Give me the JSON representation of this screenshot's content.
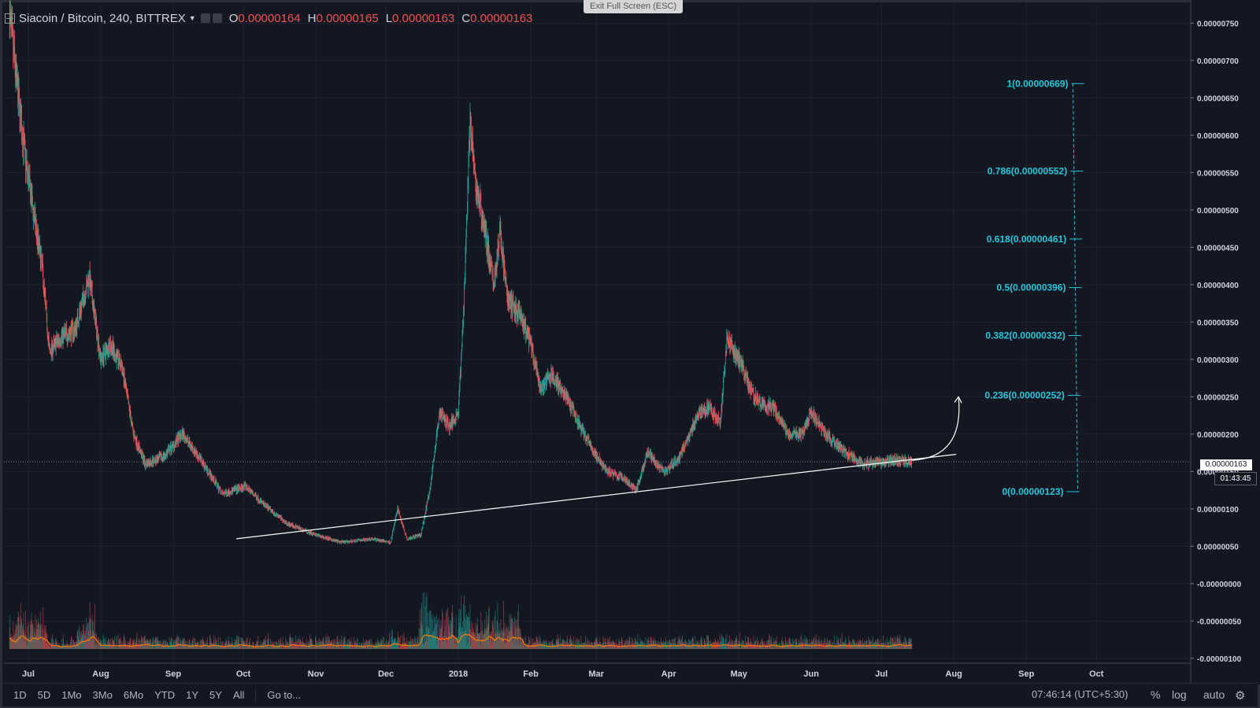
{
  "header": {
    "symbol": "Siacoin / Bitcoin, 240, BITTREX",
    "open_label": "O",
    "open_value": "0.00000164",
    "high_label": "H",
    "high_value": "0.00000165",
    "low_label": "L",
    "low_value": "0.00000163",
    "close_label": "C",
    "close_value": "0.00000163"
  },
  "exit_fullscreen_label": "Exit Full Screen (ESC)",
  "price_axis_labels": [
    "0.00000750",
    "0.00000700",
    "0.00000650",
    "0.00000600",
    "0.00000550",
    "0.00000500",
    "0.00000450",
    "0.00000400",
    "0.00000350",
    "0.00000300",
    "0.00000250",
    "0.00000200",
    "0.00000150",
    "0.00000100",
    "0.00000050",
    "-0.00000000",
    "-0.00000050",
    "-0.00000100"
  ],
  "last_price_tag": "0.00000163",
  "countdown_tag": "01:43:45",
  "time_axis_labels": [
    "Jul",
    "Aug",
    "Sep",
    "Oct",
    "Nov",
    "Dec",
    "2018",
    "Feb",
    "Mar",
    "Apr",
    "May",
    "Jun",
    "Jul",
    "Aug",
    "Sep",
    "Oct"
  ],
  "fib_levels": [
    {
      "label": "1(0.00000669)",
      "ratio": 1,
      "price": 6.69e-06
    },
    {
      "label": "0.786(0.00000552)",
      "ratio": 0.786,
      "price": 5.52e-06
    },
    {
      "label": "0.618(0.00000461)",
      "ratio": 0.618,
      "price": 4.61e-06
    },
    {
      "label": "0.5(0.00000396)",
      "ratio": 0.5,
      "price": 3.96e-06
    },
    {
      "label": "0.382(0.00000332)",
      "ratio": 0.382,
      "price": 3.32e-06
    },
    {
      "label": "0.236(0.00000252)",
      "ratio": 0.236,
      "price": 2.52e-06
    },
    {
      "label": "0(0.00000123)",
      "ratio": 0,
      "price": 1.23e-06
    }
  ],
  "bottom_bar": {
    "ranges": [
      "1D",
      "5D",
      "1Mo",
      "3Mo",
      "6Mo",
      "YTD",
      "1Y",
      "5Y",
      "All"
    ],
    "goto_label": "Go to...",
    "clock": "07:46:14 (UTC+5:30)",
    "percent_label": "%",
    "log_label": "log",
    "auto_label": "auto",
    "settings_icon": "gear-icon"
  },
  "colors": {
    "background": "#131722",
    "up": "#26a69a",
    "down": "#ef5350",
    "fib": "#26c6da",
    "volume_ma": "#f57c00",
    "trendline": "#ffffff"
  },
  "chart_data": {
    "type": "candlestick",
    "title": "Siacoin / Bitcoin, 240, BITTREX",
    "xlabel": "",
    "ylabel": "",
    "x_start": "2017-06-23",
    "x_end": "2018-07-14",
    "ylim": [
      -1e-06,
      7.6e-06
    ],
    "grid": true,
    "price_path": [
      [
        "2017-06-23",
        7.6e-06
      ],
      [
        "2017-06-26",
        6.7e-06
      ],
      [
        "2017-06-30",
        5.6e-06
      ],
      [
        "2017-07-03",
        5e-06
      ],
      [
        "2017-07-07",
        4.2e-06
      ],
      [
        "2017-07-10",
        3.1e-06
      ],
      [
        "2017-07-15",
        3.3e-06
      ],
      [
        "2017-07-21",
        3.4e-06
      ],
      [
        "2017-07-27",
        4.1e-06
      ],
      [
        "2017-08-01",
        3e-06
      ],
      [
        "2017-08-05",
        3.2e-06
      ],
      [
        "2017-08-10",
        2.9e-06
      ],
      [
        "2017-08-15",
        2e-06
      ],
      [
        "2017-08-20",
        1.6e-06
      ],
      [
        "2017-08-28",
        1.7e-06
      ],
      [
        "2017-09-05",
        2e-06
      ],
      [
        "2017-09-13",
        1.65e-06
      ],
      [
        "2017-09-22",
        1.2e-06
      ],
      [
        "2017-09-27",
        1.25e-06
      ],
      [
        "2017-10-02",
        1.3e-06
      ],
      [
        "2017-10-10",
        1.05e-06
      ],
      [
        "2017-10-20",
        8e-07
      ],
      [
        "2017-11-01",
        6.5e-07
      ],
      [
        "2017-11-12",
        5.5e-07
      ],
      [
        "2017-11-25",
        6e-07
      ],
      [
        "2017-12-03",
        5.5e-07
      ],
      [
        "2017-12-06",
        1e-06
      ],
      [
        "2017-12-10",
        6e-07
      ],
      [
        "2017-12-16",
        6.5e-07
      ],
      [
        "2017-12-20",
        1.3e-06
      ],
      [
        "2017-12-24",
        2.3e-06
      ],
      [
        "2017-12-28",
        2.1e-06
      ],
      [
        "2018-01-01",
        2.3e-06
      ],
      [
        "2018-01-03",
        3.5e-06
      ],
      [
        "2018-01-06",
        6.2e-06
      ],
      [
        "2018-01-08",
        5.4e-06
      ],
      [
        "2018-01-12",
        4.8e-06
      ],
      [
        "2018-01-16",
        4e-06
      ],
      [
        "2018-01-19",
        4.7e-06
      ],
      [
        "2018-01-22",
        3.8e-06
      ],
      [
        "2018-01-27",
        3.6e-06
      ],
      [
        "2018-02-01",
        3.2e-06
      ],
      [
        "2018-02-05",
        2.6e-06
      ],
      [
        "2018-02-10",
        2.8e-06
      ],
      [
        "2018-02-16",
        2.5e-06
      ],
      [
        "2018-02-22",
        2.1e-06
      ],
      [
        "2018-03-01",
        1.7e-06
      ],
      [
        "2018-03-06",
        1.5e-06
      ],
      [
        "2018-03-13",
        1.4e-06
      ],
      [
        "2018-03-18",
        1.25e-06
      ],
      [
        "2018-03-23",
        1.75e-06
      ],
      [
        "2018-03-30",
        1.5e-06
      ],
      [
        "2018-04-05",
        1.65e-06
      ],
      [
        "2018-04-10",
        2e-06
      ],
      [
        "2018-04-14",
        2.3e-06
      ],
      [
        "2018-04-18",
        2.35e-06
      ],
      [
        "2018-04-23",
        2.15e-06
      ],
      [
        "2018-04-26",
        3.3e-06
      ],
      [
        "2018-05-01",
        3e-06
      ],
      [
        "2018-05-06",
        2.6e-06
      ],
      [
        "2018-05-10",
        2.4e-06
      ],
      [
        "2018-05-16",
        2.35e-06
      ],
      [
        "2018-05-22",
        2e-06
      ],
      [
        "2018-05-28",
        2e-06
      ],
      [
        "2018-06-01",
        2.3e-06
      ],
      [
        "2018-06-06",
        2.05e-06
      ],
      [
        "2018-06-12",
        1.85e-06
      ],
      [
        "2018-06-18",
        1.7e-06
      ],
      [
        "2018-06-24",
        1.6e-06
      ],
      [
        "2018-06-30",
        1.62e-06
      ],
      [
        "2018-07-06",
        1.65e-06
      ],
      [
        "2018-07-14",
        1.63e-06
      ]
    ],
    "annotations": {
      "trendline": [
        [
          "2017-09-28",
          6e-07
        ],
        [
          "2018-08-02",
          1.73e-06
        ]
      ],
      "projection_arrow": [
        [
          "2018-07-14",
          1.65e-06
        ],
        [
          "2018-07-28",
          2e-06
        ],
        [
          "2018-08-03",
          2.5e-06
        ]
      ],
      "fibonacci_retracement": {
        "from": 1.23e-06,
        "to": 6.69e-06,
        "x": "2018-09-23"
      }
    }
  }
}
